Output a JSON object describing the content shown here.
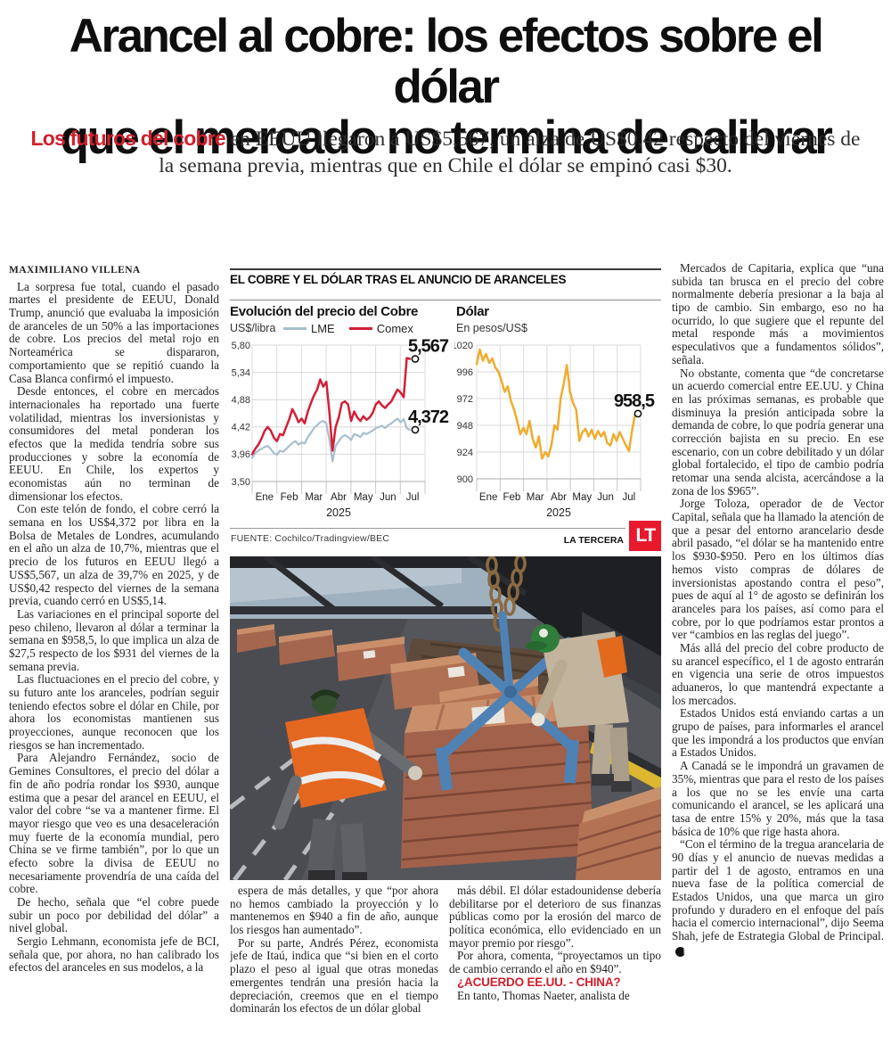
{
  "headline": {
    "line1": "Arancel al cobre: los efectos sobre el dólar",
    "line2": "que el mercado no termina de calibrar"
  },
  "kicker": {
    "lead": "Los futuros del cobre",
    "rest": " en EEUU llegaron a US$5,567, un alza de US$0,42 respecto del viernes de la semana previa, mientras que en Chile el dólar se empinó casi $30."
  },
  "article": {
    "byline": "MAXIMILIANO VILLENA",
    "end_mark": "P",
    "col1_paras": [
      "La sorpresa fue total, cuando el pasado martes el presidente de EEUU, Donald Trump, anunció que evaluaba la imposición de aranceles de un 50% a las importaciones de cobre. Los precios del metal rojo en Norteamérica se dispararon, comportamiento que se repitió cuando la Casa Blanca confirmó el impuesto.",
      "Desde entonces, el cobre en mercados internacionales ha reportado una fuerte volatilidad, mientras los inversionistas y consumidores del metal ponderan los efectos que la medida tendría sobre sus producciones y sobre la economía de EEUU. En Chile, los expertos y economistas aún no terminan de dimensionar los efectos.",
      "Con este telón de fondo, el cobre cerró la semana en los US$4,372 por libra en la Bolsa de Metales de Londres, acumulando en el año un alza de 10,7%, mientras que el precio de los futuros en EEUU llegó a US$5,567, un alza de 39,7% en 2025, y de US$0,42 respecto del viernes de la semana previa, cuando cerró en US$5,14.",
      "Las variaciones en el principal soporte del peso chileno, llevaron al dólar a terminar la semana en $958,5, lo que implica un alza de $27,5 respecto de los $931 del viernes de la semana previa.",
      "Las fluctuaciones en el precio del cobre, y su futuro ante los aranceles, podrían seguir teniendo efectos sobre el dólar en Chile, por ahora los economistas mantienen sus proyecciones, aunque reconocen que los riesgos se han incrementado.",
      "Para Alejandro Fernández, socio de Gemines Consultores, el precio del dólar a fin de año podría rondar los $930, aunque estima que a pesar del arancel en EEUU, el valor del cobre “se va a mantener firme. El mayor riesgo que veo es una desaceleración muy fuerte de la economía mundial, pero China se ve firme también”, por lo que un efecto sobre la divisa de EEUU no necesariamente provendría de una caída del cobre.",
      "De hecho, señala que “el cobre puede subir un poco por debilidad del dólar” a nivel global.",
      "Sergio Lehmann, economista jefe de BCI, señala que, por ahora, no han calibrado los efectos del aranceles en sus modelos, a la"
    ],
    "col2_paras": [
      "espera de más detalles, y que “por ahora no hemos cambiado la proyección y lo mantenemos en $940 a fin de año, aunque los riesgos han aumentado”.",
      "Por su parte, Andrés Pérez, economista jefe de Itaú, indica que “si bien en el corto plazo el peso al igual que otras monedas emergentes tendrán una presión hacia la depreciación, creemos que en el tiempo dominarán los efectos de un dólar global"
    ],
    "col3_paras": [
      "más débil. El dólar estadounidense debería debilitarse por el deterioro de sus finanzas públicas como por la erosión del marco de política económica, ello evidenciado en un mayor premio por riesgo”.",
      "Por ahora, comenta, “proyectamos un tipo de cambio cerrando el año en $940”."
    ],
    "col3_subhead": "¿ACUERDO EE.UU. - CHINA?",
    "col3_paras2": [
      "En tanto, Thomas Naeter, analista de"
    ],
    "col4_paras": [
      "Mercados de Capitaria, explica que “una subida tan brusca en el precio del cobre normalmente debería presionar a la baja al tipo de cambio. Sin embargo, eso no ha ocurrido, lo que sugiere que el repunte del metal responde más a movimientos especulativos que a fundamentos sólidos”, señala.",
      "No obstante, comenta que “de concretarse un acuerdo comercial entre EE.UU. y China en las próximas semanas, es probable que disminuya la presión anticipada sobre la demanda de cobre, lo que podría generar una corrección bajista en su precio. En ese escenario, con un cobre debilitado y un dólar global fortalecido, el tipo de cambio podría retomar una senda alcista, acercándose a la zona de los $965”.",
      "Jorge Toloza, operador de de Vector Capital, señala que ha llamado la atención de que a pesar del entorno arancelario desde abril pasado, “el dólar se ha mantenido entre los $930-$950. Pero en los últimos días hemos visto compras de dólares de inversionistas apostando contra el peso”, pues de aquí al 1° de agosto se definirán los aranceles para los países, así como para el cobre, por lo que podríamos estar prontos a ver “cambios en las reglas del juego”.",
      "Más allá del precio del cobre producto de su arancel específico, el 1 de agosto entrarán en vigencia una serie de otros impuestos aduaneros, lo que mantendrá expectante a los mercados.",
      "Estados Unidos está enviando cartas a un grupo de países, para informarles el arancel que les impondrá a los productos que envían a Estados Unidos.",
      "A Canadá se le impondrá un gravamen de 35%, mientras que para el resto de los países a los que no se les envíe una carta comunicando el arancel, se les aplicará una tasa de entre 15% y 20%, más que la tasa básica de 10% que rige hasta ahora.",
      "“Con el término de la tregua arancelaria de 90 días y el anuncio de nuevas medidas a partir del 1 de agosto, entramos en una nueva fase de la política comercial de Estados Unidos, una que marca un giro profundo y duradero en el enfoque del país hacia el comercio internacional”, dijo Seema Shah, jefe de Estrategia Global de Principal."
    ]
  },
  "infographic": {
    "header": "EL COBRE Y EL DÓLAR TRAS EL ANUNCIO DE ARANCELES",
    "source": "FUENTE: Cochilco/Tradingview/BEC",
    "credit": "LA TERCERA",
    "logo": "LT"
  },
  "colors": {
    "accent_red": "#d0202c",
    "logo_red": "#e8192c",
    "comex_red": "#d22038",
    "lme_blue": "#a7bfcd",
    "dollar_amber": "#efac2f",
    "grid_gray": "#d8d8d8"
  },
  "chart_data": [
    {
      "type": "line",
      "title": "Evolución del precio del Cobre",
      "ylabel": "US$/libra",
      "year_label": "2025",
      "x_tick_labels": [
        "Ene",
        "Feb",
        "Mar",
        "Abr",
        "May",
        "Jun",
        "Jul"
      ],
      "y_ticks": [
        5.8,
        5.34,
        4.88,
        4.42,
        3.96,
        3.5
      ],
      "y_tick_labels": [
        "5,80",
        "5,34",
        "4,88",
        "4,42",
        "3,96",
        "3,50"
      ],
      "ylim": [
        3.5,
        5.8
      ],
      "grid": true,
      "legend_position": "top",
      "series": [
        {
          "name": "LME",
          "color": "#a7bfcd",
          "end_label": "4,372",
          "end_value": 4.372,
          "values": [
            3.9,
            3.98,
            4.02,
            4.05,
            4.08,
            4.1,
            4.05,
            3.98,
            3.95,
            4.02,
            4.0,
            4.05,
            4.1,
            4.15,
            4.18,
            4.12,
            4.16,
            4.14,
            4.25,
            4.32,
            4.4,
            4.45,
            4.5,
            4.52,
            4.48,
            4.2,
            3.84,
            4.1,
            4.18,
            4.25,
            4.28,
            4.25,
            4.2,
            4.3,
            4.28,
            4.25,
            4.32,
            4.3,
            4.33,
            4.36,
            4.4,
            4.42,
            4.44,
            4.4,
            4.45,
            4.48,
            4.52,
            4.56,
            4.5,
            4.55,
            4.4,
            4.372
          ]
        },
        {
          "name": "Comex",
          "color": "#d22038",
          "end_label": "5,567",
          "end_value": 5.567,
          "values": [
            3.96,
            4.05,
            4.12,
            4.22,
            4.35,
            4.42,
            4.36,
            4.24,
            4.18,
            4.3,
            4.28,
            4.42,
            4.55,
            4.72,
            4.62,
            4.5,
            4.56,
            4.48,
            4.68,
            4.82,
            4.95,
            5.05,
            5.22,
            5.1,
            5.18,
            4.65,
            4.02,
            4.42,
            4.58,
            4.82,
            4.85,
            4.8,
            4.52,
            4.68,
            4.58,
            4.52,
            4.6,
            4.54,
            4.58,
            4.66,
            4.8,
            4.85,
            4.78,
            4.74,
            4.8,
            4.85,
            4.95,
            5.05,
            5.0,
            4.92,
            5.58,
            5.567
          ]
        }
      ]
    },
    {
      "type": "line",
      "title": "Dólar",
      "ylabel": "En pesos/US$",
      "year_label": "2025",
      "x_tick_labels": [
        "Ene",
        "Feb",
        "Mar",
        "Abr",
        "May",
        "Jun",
        "Jul"
      ],
      "y_ticks": [
        1020,
        996,
        972,
        948,
        924,
        900
      ],
      "y_tick_labels": [
        "1020",
        "996",
        "972",
        "948",
        "924",
        "900"
      ],
      "ylim": [
        900,
        1020
      ],
      "grid": true,
      "legend_position": "none",
      "series": [
        {
          "name": "Dólar",
          "color": "#efac2f",
          "end_label": "958,5",
          "end_value": 958.5,
          "values": [
            1003,
            1016,
            1006,
            1012,
            1004,
            1008,
            1000,
            996,
            988,
            978,
            983,
            970,
            962,
            952,
            940,
            946,
            940,
            952,
            936,
            928,
            938,
            918,
            924,
            920,
            930,
            948,
            944,
            972,
            985,
            1002,
            978,
            968,
            962,
            934,
            942,
            945,
            938,
            944,
            936,
            943,
            938,
            942,
            932,
            930,
            940,
            934,
            942,
            936,
            930,
            925,
            944,
            958.5
          ]
        }
      ]
    }
  ]
}
